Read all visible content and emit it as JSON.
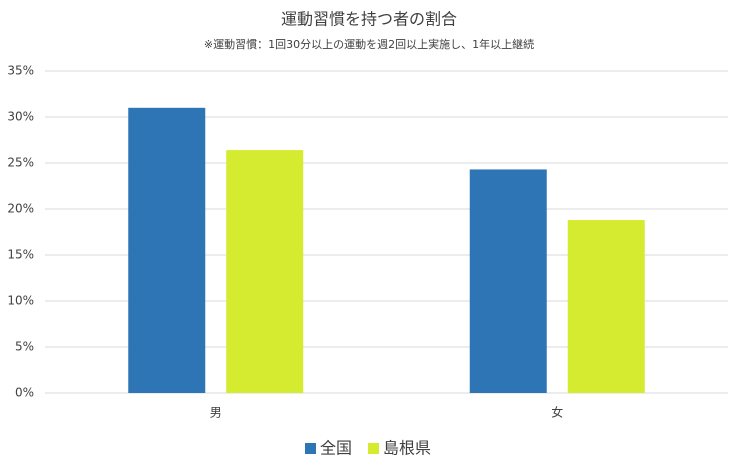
{
  "chart_data": {
    "type": "bar",
    "title": "運動習慣を持つ者の割合",
    "subtitle": "※運動習慣：1回30分以上の運動を週2回以上実施し、1年以上継続",
    "categories": [
      "男",
      "女"
    ],
    "series": [
      {
        "name": "全国",
        "color": "#2e75b6",
        "values": [
          31.0,
          24.3
        ]
      },
      {
        "name": "島根県",
        "color": "#d4eb2f",
        "values": [
          26.4,
          18.8
        ]
      }
    ],
    "ylim": [
      0,
      35
    ],
    "yticks": [
      {
        "value": 0,
        "label": "0%"
      },
      {
        "value": 5,
        "label": "5%"
      },
      {
        "value": 10,
        "label": "10%"
      },
      {
        "value": 15,
        "label": "15%"
      },
      {
        "value": 20,
        "label": "20%"
      },
      {
        "value": 25,
        "label": "25%"
      },
      {
        "value": 30,
        "label": "30%"
      },
      {
        "value": 35,
        "label": "35%"
      }
    ],
    "grid": true,
    "legend": "bottom"
  }
}
